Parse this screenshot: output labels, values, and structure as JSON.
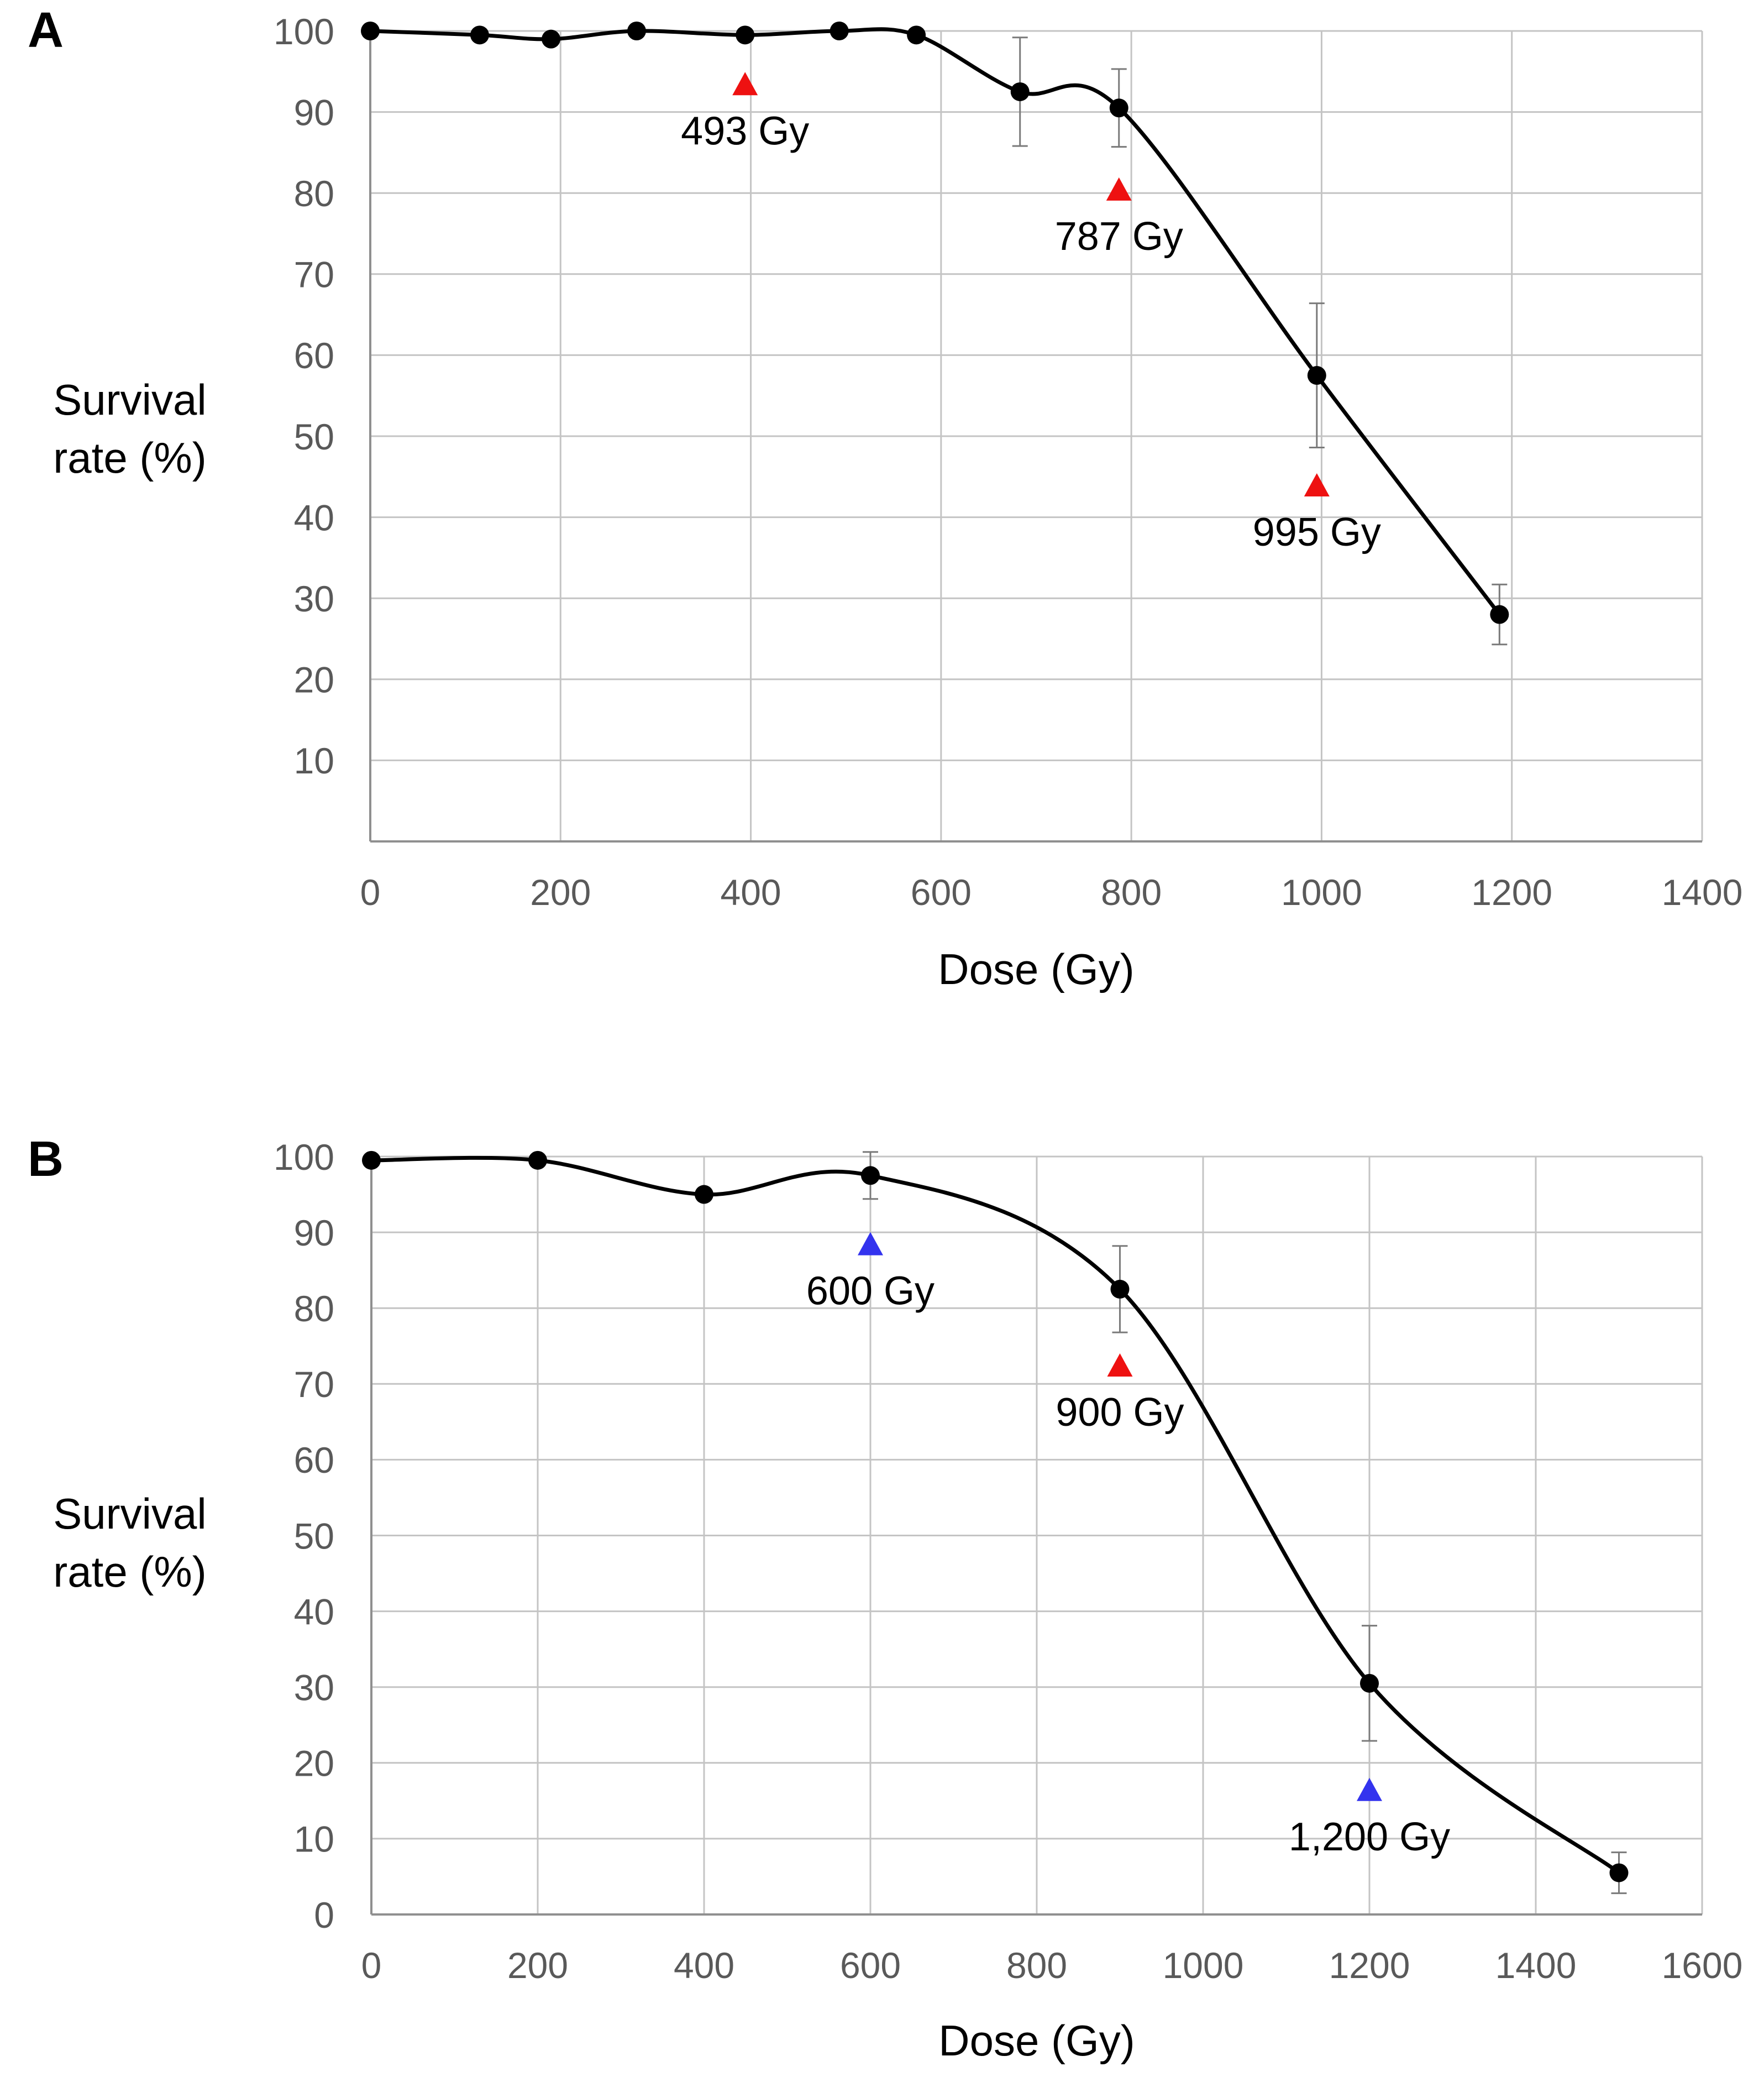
{
  "colors": {
    "grid": "#c4c4c4",
    "axis": "#8f8f8f",
    "line": "#000000",
    "marker": "#000000",
    "errorbar": "#7a7a7a",
    "red": "#ee1111",
    "blue": "#3333ee",
    "ticktext": "#595959",
    "text": "#000000"
  },
  "chart_data": [
    {
      "panel": "A",
      "type": "line",
      "xlabel": "Dose (Gy)",
      "ylabel": [
        "Survival",
        "rate (%)"
      ],
      "xlim": [
        0,
        1400
      ],
      "ylim": [
        0,
        100
      ],
      "xticks": [
        "0",
        "200",
        "400",
        "600",
        "800",
        "1000",
        "1200",
        "1400"
      ],
      "yticks": [
        "10",
        "20",
        "30",
        "40",
        "50",
        "60",
        "70",
        "80",
        "90",
        "100"
      ],
      "grid": true,
      "series": [
        {
          "name": "Survival rate",
          "x": [
            0,
            115,
            190,
            280,
            394,
            493,
            574,
            683,
            787,
            995,
            1187
          ],
          "y": [
            100,
            99.5,
            99,
            100,
            99.5,
            100,
            99.5,
            92.5,
            90.5,
            57.5,
            28
          ],
          "error": [
            0,
            0,
            0,
            0,
            0,
            0,
            0,
            6.7,
            4.8,
            8.9,
            3.7
          ]
        }
      ],
      "annotations": [
        {
          "label": "493 Gy",
          "x": 394,
          "y": 93.5,
          "color": "red"
        },
        {
          "label": "787 Gy",
          "x": 787,
          "y": 80.5,
          "color": "red"
        },
        {
          "label": "995 Gy",
          "x": 995,
          "y": 44,
          "color": "red"
        }
      ]
    },
    {
      "panel": "B",
      "type": "line",
      "xlabel": "Dose (Gy)",
      "ylabel": [
        "Survival",
        "rate (%)"
      ],
      "xlim": [
        0,
        1600
      ],
      "ylim": [
        0,
        100
      ],
      "xticks": [
        "0",
        "200",
        "400",
        "600",
        "800",
        "1000",
        "1200",
        "1400",
        "1600"
      ],
      "yticks": [
        "0",
        "10",
        "20",
        "30",
        "40",
        "50",
        "60",
        "70",
        "80",
        "90",
        "100"
      ],
      "grid": true,
      "series": [
        {
          "name": "Survival rate",
          "x": [
            0,
            200,
            400,
            600,
            900,
            1200,
            1500
          ],
          "y": [
            99.5,
            99.5,
            95,
            97.5,
            82.5,
            30.5,
            5.5
          ],
          "error": [
            0,
            0,
            0,
            3.1,
            5.7,
            7.6,
            2.7
          ]
        }
      ],
      "annotations": [
        {
          "label": "600 Gy",
          "x": 600,
          "y": 88.5,
          "color": "blue"
        },
        {
          "label": "900 Gy",
          "x": 900,
          "y": 72.5,
          "color": "red"
        },
        {
          "label": "1,200 Gy",
          "x": 1200,
          "y": 16.5,
          "color": "blue"
        }
      ]
    }
  ]
}
